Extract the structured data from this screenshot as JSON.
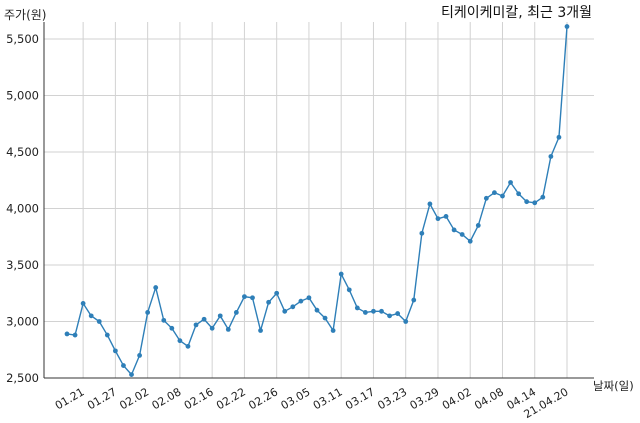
{
  "chart_data": {
    "type": "line",
    "title": "티케이케미칼, 최근 3개월",
    "ylabel": "주가(원)",
    "xlabel": "날짜(일)",
    "ylim": [
      2500,
      5650
    ],
    "yticks": [
      2500,
      3000,
      3500,
      4000,
      4500,
      5000,
      5500
    ],
    "ytick_labels": [
      "2,500",
      "3,000",
      "3,500",
      "4,000",
      "4,500",
      "5,000",
      "5,500"
    ],
    "grid": true,
    "x_tick_labels": [
      "01.21",
      "01.27",
      "02.02",
      "02.08",
      "02.16",
      "02.22",
      "02.26",
      "03.05",
      "03.11",
      "03.17",
      "03.23",
      "03.29",
      "04.02",
      "04.08",
      "04.14",
      "21.04.20"
    ],
    "x_tick_every": 4,
    "x_tick_start": 2,
    "series": [
      {
        "color": "#2e7fb8",
        "values": [
          2890,
          2880,
          3160,
          3050,
          3000,
          2880,
          2740,
          2610,
          2530,
          2700,
          3080,
          3300,
          3010,
          2940,
          2830,
          2780,
          2970,
          3020,
          2940,
          3050,
          2930,
          3080,
          3220,
          3210,
          2920,
          3170,
          3250,
          3090,
          3130,
          3180,
          3210,
          3100,
          3030,
          2920,
          3420,
          3280,
          3120,
          3080,
          3090,
          3090,
          3050,
          3070,
          3000,
          3190,
          3780,
          4040,
          3910,
          3930,
          3810,
          3770,
          3710,
          3850,
          4090,
          4140,
          4110,
          4230,
          4130,
          4060,
          4050,
          4100,
          4460,
          4630,
          5610
        ]
      }
    ]
  }
}
